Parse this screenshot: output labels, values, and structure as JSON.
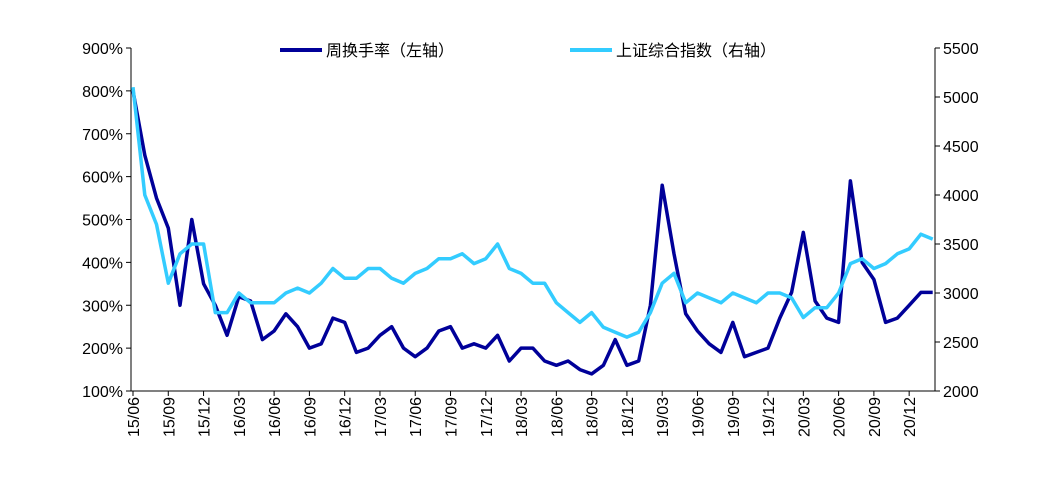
{
  "chart_data": {
    "type": "line",
    "categories": [
      "15/06",
      null,
      null,
      "15/09",
      null,
      null,
      "15/12",
      null,
      null,
      "16/03",
      null,
      null,
      "16/06",
      null,
      null,
      "16/09",
      null,
      null,
      "16/12",
      null,
      null,
      "17/03",
      null,
      null,
      "17/06",
      null,
      null,
      "17/09",
      null,
      null,
      "17/12",
      null,
      null,
      "18/03",
      null,
      null,
      "18/06",
      null,
      null,
      "18/09",
      null,
      null,
      "18/12",
      null,
      null,
      "19/03",
      null,
      null,
      "19/06",
      null,
      null,
      "19/09",
      null,
      null,
      "19/12",
      null,
      null,
      "20/03",
      null,
      null,
      "20/06",
      null,
      null,
      "20/09",
      null,
      null,
      "20/12",
      null,
      null
    ],
    "series": [
      {
        "name": "周换手率（左轴）",
        "color": "#000099",
        "values": [
          800,
          650,
          550,
          480,
          300,
          500,
          350,
          300,
          230,
          320,
          310,
          220,
          240,
          280,
          250,
          200,
          210,
          270,
          260,
          190,
          200,
          230,
          250,
          200,
          180,
          200,
          240,
          250,
          200,
          210,
          200,
          230,
          170,
          200,
          200,
          170,
          160,
          170,
          150,
          140,
          160,
          220,
          160,
          170,
          300,
          580,
          420,
          280,
          240,
          210,
          190,
          260,
          180,
          190,
          200,
          270,
          330,
          470,
          310,
          270,
          260,
          590,
          400,
          360,
          260,
          270,
          300,
          330,
          330
        ]
      },
      {
        "name": "上证综合指数（右轴）",
        "color": "#33ccff",
        "axis": "y2",
        "values": [
          5100,
          4000,
          3700,
          3100,
          3400,
          3500,
          3500,
          2800,
          2800,
          3000,
          2900,
          2900,
          2900,
          3000,
          3050,
          3000,
          3100,
          3250,
          3150,
          3150,
          3250,
          3250,
          3150,
          3100,
          3200,
          3250,
          3350,
          3350,
          3400,
          3300,
          3350,
          3500,
          3250,
          3200,
          3100,
          3100,
          2900,
          2800,
          2700,
          2800,
          2650,
          2600,
          2550,
          2600,
          2800,
          3100,
          3200,
          2900,
          3000,
          2950,
          2900,
          3000,
          2950,
          2900,
          3000,
          3000,
          2950,
          2750,
          2850,
          2850,
          3000,
          3300,
          3350,
          3250,
          3300,
          3400,
          3450,
          3600,
          3550
        ]
      }
    ],
    "ylim": [
      100,
      900
    ],
    "yticks": [
      {
        "value": 100,
        "label": "100%"
      },
      {
        "value": 200,
        "label": "200%"
      },
      {
        "value": 300,
        "label": "300%"
      },
      {
        "value": 400,
        "label": "400%"
      },
      {
        "value": 500,
        "label": "500%"
      },
      {
        "value": 600,
        "label": "600%"
      },
      {
        "value": 700,
        "label": "700%"
      },
      {
        "value": 800,
        "label": "800%"
      },
      {
        "value": 900,
        "label": "900%"
      }
    ],
    "y2lim": [
      2000,
      5500
    ],
    "y2ticks": [
      2000,
      2500,
      3000,
      3500,
      4000,
      4500,
      5000,
      5500
    ],
    "legend": "top"
  }
}
